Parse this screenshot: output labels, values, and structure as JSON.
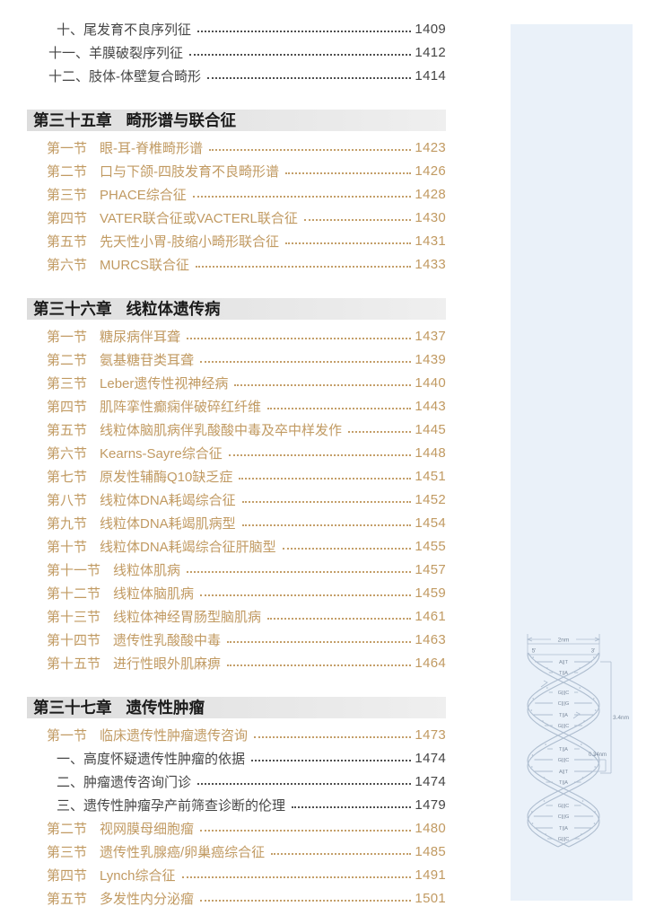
{
  "colors": {
    "section_text": "#c19a62",
    "subitem_text": "#454545",
    "chapter_text": "#1a1a1a",
    "chapter_bar_left": "#dddddd",
    "chapter_bar_right": "#efefef",
    "panel_background": "#eaf1f9",
    "helix_line": "#aebdcf",
    "helix_text": "#7b8a9c"
  },
  "toc": {
    "intro_items": [
      {
        "kind": "sub",
        "label": "十、尾发育不良序列征",
        "page": "1409"
      },
      {
        "kind": "sub",
        "label": "十一、羊膜破裂序列征",
        "page": "1412"
      },
      {
        "kind": "sub",
        "label": "十二、肢体-体壁复合畸形",
        "page": "1414"
      }
    ],
    "chapters": [
      {
        "no": "第三十五章",
        "title": "畸形谱与联合征",
        "items": [
          {
            "kind": "section",
            "no": "第一节",
            "label": "眼-耳-脊椎畸形谱",
            "page": "1423"
          },
          {
            "kind": "section",
            "no": "第二节",
            "label": "口与下颌-四肢发育不良畸形谱",
            "page": "1426"
          },
          {
            "kind": "section",
            "no": "第三节",
            "label": "PHACE综合征",
            "page": "1428"
          },
          {
            "kind": "section",
            "no": "第四节",
            "label": "VATER联合征或VACTERL联合征",
            "page": "1430"
          },
          {
            "kind": "section",
            "no": "第五节",
            "label": "先天性小胃-肢缩小畸形联合征",
            "page": "1431"
          },
          {
            "kind": "section",
            "no": "第六节",
            "label": "MURCS联合征",
            "page": "1433"
          }
        ]
      },
      {
        "no": "第三十六章",
        "title": "线粒体遗传病",
        "items": [
          {
            "kind": "section",
            "no": "第一节",
            "label": "糖尿病伴耳聋",
            "page": "1437"
          },
          {
            "kind": "section",
            "no": "第二节",
            "label": "氨基糖苷类耳聋",
            "page": "1439"
          },
          {
            "kind": "section",
            "no": "第三节",
            "label": "Leber遗传性视神经病",
            "page": "1440"
          },
          {
            "kind": "section",
            "no": "第四节",
            "label": "肌阵挛性癫痫伴破碎红纤维",
            "page": "1443"
          },
          {
            "kind": "section",
            "no": "第五节",
            "label": "线粒体脑肌病伴乳酸酸中毒及卒中样发作",
            "page": "1445"
          },
          {
            "kind": "section",
            "no": "第六节",
            "label": "Kearns-Sayre综合征",
            "page": "1448"
          },
          {
            "kind": "section",
            "no": "第七节",
            "label": "原发性辅酶Q10缺乏症",
            "page": "1451"
          },
          {
            "kind": "section",
            "no": "第八节",
            "label": "线粒体DNA耗竭综合征",
            "page": "1452"
          },
          {
            "kind": "section",
            "no": "第九节",
            "label": "线粒体DNA耗竭肌病型",
            "page": "1454"
          },
          {
            "kind": "section",
            "no": "第十节",
            "label": "线粒体DNA耗竭综合征肝脑型",
            "page": "1455"
          },
          {
            "kind": "section",
            "no": "第十一节",
            "label": "线粒体肌病",
            "page": "1457"
          },
          {
            "kind": "section",
            "no": "第十二节",
            "label": "线粒体脑肌病",
            "page": "1459"
          },
          {
            "kind": "section",
            "no": "第十三节",
            "label": "线粒体神经胃肠型脑肌病",
            "page": "1461"
          },
          {
            "kind": "section",
            "no": "第十四节",
            "label": "遗传性乳酸酸中毒",
            "page": "1463"
          },
          {
            "kind": "section",
            "no": "第十五节",
            "label": "进行性眼外肌麻痹",
            "page": "1464"
          }
        ]
      },
      {
        "no": "第三十七章",
        "title": "遗传性肿瘤",
        "items": [
          {
            "kind": "section",
            "no": "第一节",
            "label": "临床遗传性肿瘤遗传咨询",
            "page": "1473"
          },
          {
            "kind": "sub",
            "label": "一、高度怀疑遗传性肿瘤的依据",
            "page": "1474"
          },
          {
            "kind": "sub",
            "label": "二、肿瘤遗传咨询门诊",
            "page": "1474"
          },
          {
            "kind": "sub",
            "label": "三、遗传性肿瘤孕产前筛查诊断的伦理",
            "page": "1479"
          },
          {
            "kind": "section",
            "no": "第二节",
            "label": "视网膜母细胞瘤",
            "page": "1480"
          },
          {
            "kind": "section",
            "no": "第三节",
            "label": "遗传性乳腺癌/卵巢癌综合征",
            "page": "1485"
          },
          {
            "kind": "section",
            "no": "第四节",
            "label": "Lynch综合征",
            "page": "1491"
          },
          {
            "kind": "section",
            "no": "第五节",
            "label": "多发性内分泌瘤",
            "page": "1501"
          }
        ]
      }
    ]
  },
  "dna_panel": {
    "width_label": "2nm",
    "five_prime": "5'",
    "three_prime": "3'",
    "turn_label": "3.4nm",
    "rise_label": "0.34nm",
    "base_pairs": [
      "A||T",
      "T||A",
      "G|||C",
      "C|||G",
      "T||A",
      "G|||C",
      "T||A",
      "G|||C",
      "A||T",
      "T||A",
      "G|||C",
      "C|||G",
      "T||A",
      "G|||C"
    ]
  }
}
